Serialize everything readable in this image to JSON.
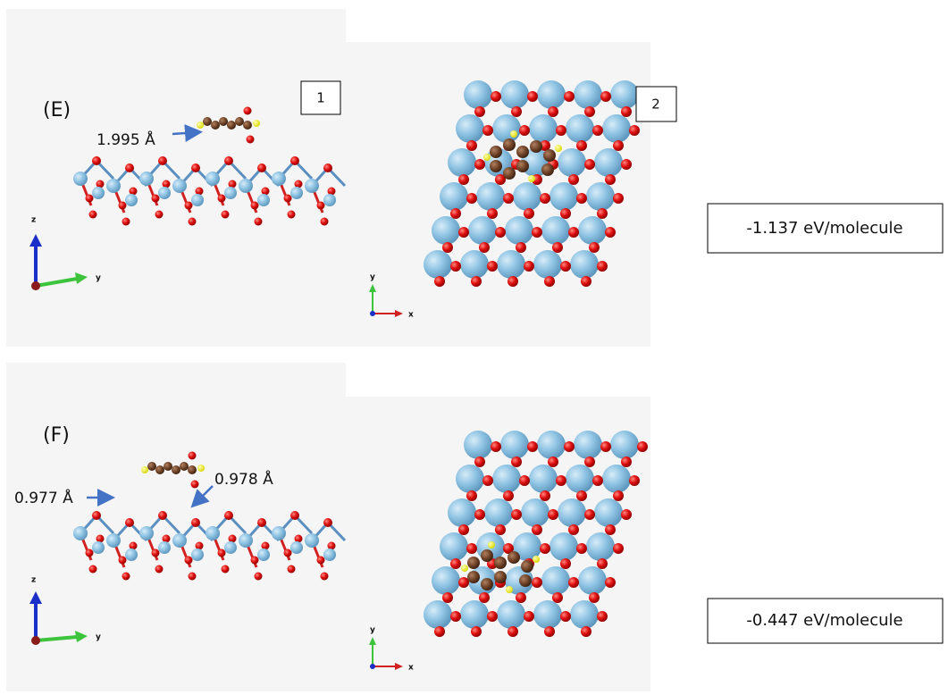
{
  "panels": [
    {
      "label": "(E)",
      "side_view": {
        "number": "1",
        "distances": [
          "1.995 Å"
        ],
        "axes": [
          "z",
          "y"
        ]
      },
      "top_view": {
        "number": "2",
        "axes": [
          "y",
          "x"
        ]
      },
      "energy": "-1.137 eV/molecule"
    },
    {
      "label": "(F)",
      "side_view": {
        "distances": [
          "0.977 Å",
          "0.978 Å"
        ],
        "axes": [
          "z",
          "y"
        ]
      },
      "top_view": {
        "axes": [
          "y",
          "x"
        ]
      },
      "energy": "-0.447 eV/molecule"
    }
  ]
}
